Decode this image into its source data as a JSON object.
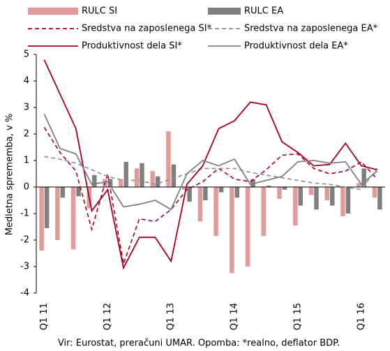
{
  "chart_data": {
    "type": "bar-line",
    "y_label": "Medletna sprememba, v %",
    "note": "Vir: Eurostat, preračuni UMAR. Opomba: *realno, deflator BDP.",
    "categories": [
      "Q1 11",
      null,
      null,
      null,
      "Q1 12",
      null,
      null,
      null,
      "Q1 13",
      null,
      null,
      null,
      "Q1 14",
      null,
      null,
      null,
      "Q1 15",
      null,
      null,
      null,
      "Q1 16",
      null
    ],
    "ylim": [
      -4,
      5
    ],
    "yticks": [
      -4,
      -3,
      -2,
      -1,
      0,
      1,
      2,
      3,
      4,
      5
    ],
    "series": [
      {
        "name": "RULC SI",
        "type": "bar",
        "color": "#e39a9a",
        "values": [
          -2.4,
          -2.0,
          -2.35,
          -0.8,
          0.3,
          0.3,
          0.7,
          0.6,
          2.1,
          -0.1,
          -1.3,
          -1.85,
          -3.25,
          -3.0,
          -1.85,
          -0.45,
          -1.45,
          -0.3,
          -0.5,
          -1.1,
          0.15,
          -0.4
        ]
      },
      {
        "name": "RULC EA",
        "type": "bar",
        "color": "#7f7f7f",
        "values": [
          -1.55,
          -0.4,
          -0.35,
          0.45,
          0.3,
          0.95,
          0.9,
          0.4,
          0.85,
          -0.55,
          -0.5,
          -0.2,
          -0.4,
          0.3,
          0.05,
          -0.1,
          -0.7,
          -0.85,
          -0.7,
          -1.0,
          0.7,
          -0.85
        ]
      },
      {
        "name": "Sredstva na zaposlenega SI*",
        "type": "line",
        "style": "dashed",
        "color": "#a50021",
        "values": [
          2.25,
          1.3,
          0.6,
          -1.6,
          0.5,
          -2.9,
          -1.2,
          -1.3,
          -0.85,
          -0.1,
          0.2,
          0.7,
          0.3,
          0.2,
          0.65,
          1.2,
          1.25,
          0.7,
          0.5,
          0.6,
          0.95,
          0.3
        ]
      },
      {
        "name": "Sredstva na zaposlenega EA*",
        "type": "line",
        "style": "dashed",
        "color": "#8c8c8c",
        "values": [
          1.15,
          1.05,
          0.9,
          0.65,
          0.4,
          0.25,
          0.25,
          0.1,
          0.3,
          0.5,
          0.7,
          0.7,
          0.7,
          0.55,
          0.45,
          0.35,
          0.25,
          0.15,
          0.1,
          0.0,
          -0.1,
          0.7
        ]
      },
      {
        "name": "Produktivnost dela SI*",
        "type": "line",
        "style": "solid",
        "color": "#a50021",
        "values": [
          4.8,
          3.5,
          2.2,
          -0.9,
          -0.1,
          -3.05,
          -1.9,
          -1.9,
          -2.8,
          0.1,
          0.8,
          2.2,
          2.5,
          3.2,
          3.1,
          1.7,
          1.3,
          0.8,
          0.85,
          1.65,
          0.8,
          0.65
        ]
      },
      {
        "name": "Produktivnost dela EA*",
        "type": "line",
        "style": "solid",
        "color": "#808080",
        "values": [
          2.75,
          1.45,
          1.25,
          0.1,
          0.2,
          -0.75,
          -0.65,
          -0.5,
          -0.85,
          0.5,
          1.0,
          0.8,
          1.05,
          0.1,
          0.25,
          0.4,
          0.95,
          1.0,
          0.9,
          0.95,
          0.1,
          0.6
        ]
      }
    ]
  }
}
